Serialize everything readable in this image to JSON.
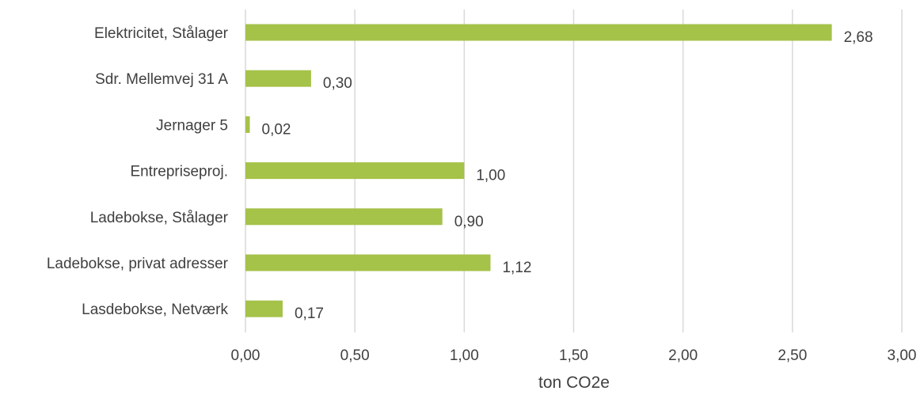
{
  "chart_data": {
    "type": "bar",
    "orientation": "horizontal",
    "categories": [
      "Elektricitet, Stålager",
      "Sdr. Mellemvej 31 A",
      "Jernager 5",
      "Entrepriseproj.",
      "Ladebokse, Stålager",
      "Ladebokse, privat adresser",
      "Lasdebokse, Netværk"
    ],
    "values": [
      2.68,
      0.3,
      0.02,
      1.0,
      0.9,
      1.12,
      0.17
    ],
    "data_labels": [
      "2,68",
      "0,30",
      "0,02",
      "1,00",
      "0,90",
      "1,12",
      "0,17"
    ],
    "xticks": [
      0,
      0.5,
      1.0,
      1.5,
      2.0,
      2.5,
      3.0
    ],
    "xtick_labels": [
      "0,00",
      "0,50",
      "1,00",
      "1,50",
      "2,00",
      "2,50",
      "3,00"
    ],
    "xlim": [
      0,
      3.0
    ],
    "xlabel": "ton CO2e",
    "ylabel": "",
    "title": "",
    "grid": "vertical",
    "legend": "none",
    "bar_color": "#a5c249"
  }
}
